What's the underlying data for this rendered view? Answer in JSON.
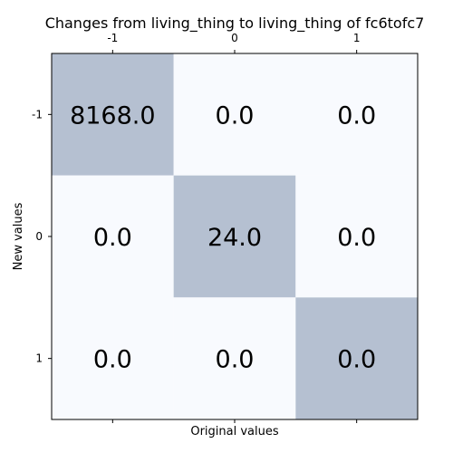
{
  "chart_data": {
    "type": "heatmap",
    "title": "Changes from living_thing to living_thing of fc6tofc7",
    "xlabel": "Original values",
    "ylabel": "New values",
    "x_categories": [
      "-1",
      "0",
      "1"
    ],
    "y_categories": [
      "-1",
      "0",
      "1"
    ],
    "values": [
      [
        8168.0,
        0.0,
        0.0
      ],
      [
        0.0,
        24.0,
        0.0
      ],
      [
        0.0,
        0.0,
        0.0
      ]
    ],
    "cell_labels": [
      [
        "8168.0",
        "0.0",
        "0.0"
      ],
      [
        "0.0",
        "24.0",
        "0.0"
      ],
      [
        "0.0",
        "0.0",
        "0.0"
      ]
    ],
    "x_ticks_position": "top and bottom",
    "grid": false,
    "colors": {
      "low": "#f8fafe",
      "high": "#b5c0d1"
    }
  }
}
